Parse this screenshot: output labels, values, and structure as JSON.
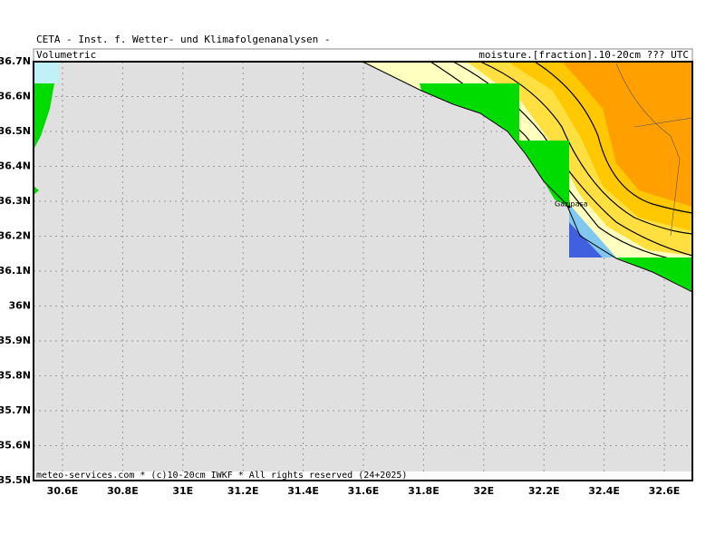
{
  "header": {
    "title": "CETA - Inst. f. Wetter- und Klimafolgenanalysen -",
    "left": "Volumetric",
    "right": "moisture.[fraction].10-20cm ??? UTC"
  },
  "map": {
    "lat_labels": [
      "36.7N",
      "36.6N",
      "36.5N",
      "36.4N",
      "36.3N",
      "36.2N",
      "36.1N",
      "36N",
      "35.9N",
      "35.8N",
      "35.7N",
      "35.6N",
      "35.5N"
    ],
    "lon_labels": [
      "30.6E",
      "30.8E",
      "31E",
      "31.2E",
      "31.4E",
      "31.6E",
      "31.8E",
      "32E",
      "32.2E",
      "32.4E",
      "32.6E"
    ],
    "place": "Gazipasa"
  },
  "footer": "meteo-services.com * (c)10-20cm IWKF * All rights reserved (24+2025)"
}
